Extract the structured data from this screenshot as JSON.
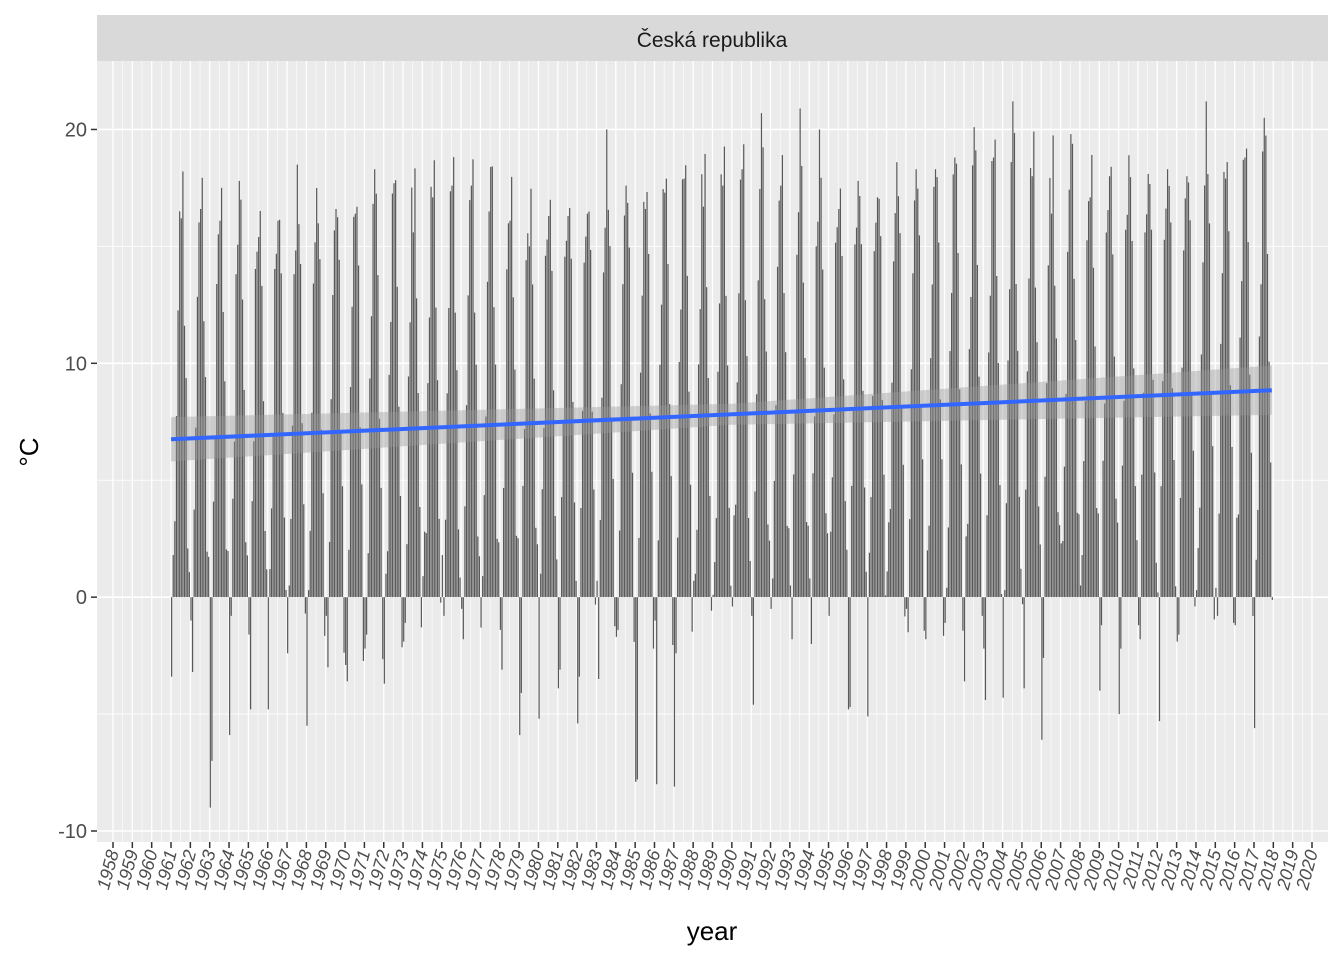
{
  "chart_data": {
    "type": "bar",
    "title": "",
    "facet_label": "Česká republika",
    "xlabel": "year",
    "ylabel": "°C",
    "x_range": [
      1958,
      2020
    ],
    "ylim": [
      -10,
      22.5
    ],
    "y_ticks": [
      -10,
      0,
      10,
      20
    ],
    "x_ticks": [
      "1958",
      "1959",
      "1960",
      "1961",
      "1962",
      "1963",
      "1964",
      "1965",
      "1966",
      "1967",
      "1968",
      "1969",
      "1970",
      "1971",
      "1972",
      "1973",
      "1974",
      "1975",
      "1976",
      "1977",
      "1978",
      "1979",
      "1980",
      "1981",
      "1982",
      "1983",
      "1984",
      "1985",
      "1986",
      "1987",
      "1988",
      "1989",
      "1990",
      "1991",
      "1992",
      "1993",
      "1994",
      "1995",
      "1996",
      "1997",
      "1998",
      "1999",
      "2000",
      "2001",
      "2002",
      "2003",
      "2004",
      "2005",
      "2006",
      "2007",
      "2008",
      "2009",
      "2010",
      "2011",
      "2012",
      "2013",
      "2014",
      "2015",
      "2016",
      "2017",
      "2018",
      "2019",
      "2020"
    ],
    "grid": true,
    "series_note": "monthly mean temperature bars, January 1961 to December 2017, approximate values",
    "monthly_climatology": [
      -2.0,
      -0.8,
      2.8,
      7.8,
      12.6,
      15.8,
      17.5,
      17.0,
      12.9,
      8.1,
      3.2,
      -0.6
    ],
    "january_by_year": {
      "1961": -3.4,
      "1962": -1.0,
      "1963": -9.0,
      "1964": -5.9,
      "1965": -1.6,
      "1966": -4.8,
      "1967": -2.4,
      "1968": -5.5,
      "1969": -0.8,
      "1970": -2.9,
      "1971": -2.2,
      "1972": -3.7,
      "1973": -1.9,
      "1974": 0.9,
      "1975": 1.8,
      "1976": -0.5,
      "1977": -1.3,
      "1978": -1.4,
      "1979": -5.9,
      "1980": -5.2,
      "1981": -3.9,
      "1982": -5.4,
      "1983": 0.7,
      "1984": -1.7,
      "1985": -7.9,
      "1986": -1.0,
      "1987": -8.1,
      "1988": 0.7,
      "1989": 0.1,
      "1990": -0.4,
      "1991": -0.8,
      "1992": -0.5,
      "1993": 0.5,
      "1994": 0.8,
      "1995": -0.8,
      "1996": -4.8,
      "1997": -5.1,
      "1998": 1.1,
      "1999": -0.5,
      "2000": -1.8,
      "2001": -1.1,
      "2002": -3.6,
      "2003": -2.2,
      "2004": -4.3,
      "2005": -0.3,
      "2006": -6.1,
      "2007": 2.3,
      "2008": 0.5,
      "2009": -4.0,
      "2010": -5.0,
      "2011": -1.2,
      "2012": 0.2,
      "2013": -1.9,
      "2014": 0.3,
      "2015": 0.4,
      "2016": -1.2,
      "2017": -5.6
    },
    "february_by_year": {
      "1961": 1.8,
      "1962": -3.2,
      "1963": -7.0,
      "1964": -0.8,
      "1965": -4.8,
      "1966": 1.2,
      "1967": 0.5,
      "1968": 0.3,
      "1969": -3.0,
      "1970": -3.6,
      "1971": -1.6,
      "1972": 1.0,
      "1973": -1.1,
      "1974": 2.8,
      "1975": -0.8,
      "1976": -1.8,
      "1977": 0.9,
      "1978": -3.1,
      "1979": -4.1,
      "1980": 1.0,
      "1981": -3.1,
      "1982": -3.4,
      "1983": -3.5,
      "1984": -1.4,
      "1985": -7.8,
      "1986": -8.0,
      "1987": -2.4,
      "1988": 1.0,
      "1989": 1.5,
      "1990": 3.5,
      "1991": -4.6,
      "1992": 0.8,
      "1993": -1.8,
      "1994": -2.0,
      "1995": 2.8,
      "1996": -4.7,
      "1997": 1.9,
      "1998": 3.2,
      "1999": -1.5,
      "2000": 2.0,
      "2001": 0.4,
      "2002": 2.6,
      "2003": -4.4,
      "2004": 0.3,
      "2005": -3.9,
      "2006": -2.6,
      "2007": 2.4,
      "2008": 1.8,
      "2009": -1.2,
      "2010": -2.2,
      "2011": -1.8,
      "2012": -5.3,
      "2013": -1.6,
      "2014": 2.1,
      "2015": -0.8,
      "2016": 3.4,
      "2017": 1.6
    },
    "trend_line": {
      "x": [
        1961.0,
        2017.92
      ],
      "y": [
        6.75,
        8.85
      ],
      "color": "#3366FF"
    },
    "confidence_band": {
      "lower_start": 5.8,
      "upper_start": 7.7,
      "lower_end": 7.8,
      "upper_end": 9.9
    },
    "bar_color": "#595959",
    "panel_color": "#EBEBEB",
    "strip_color": "#D9D9D9"
  }
}
